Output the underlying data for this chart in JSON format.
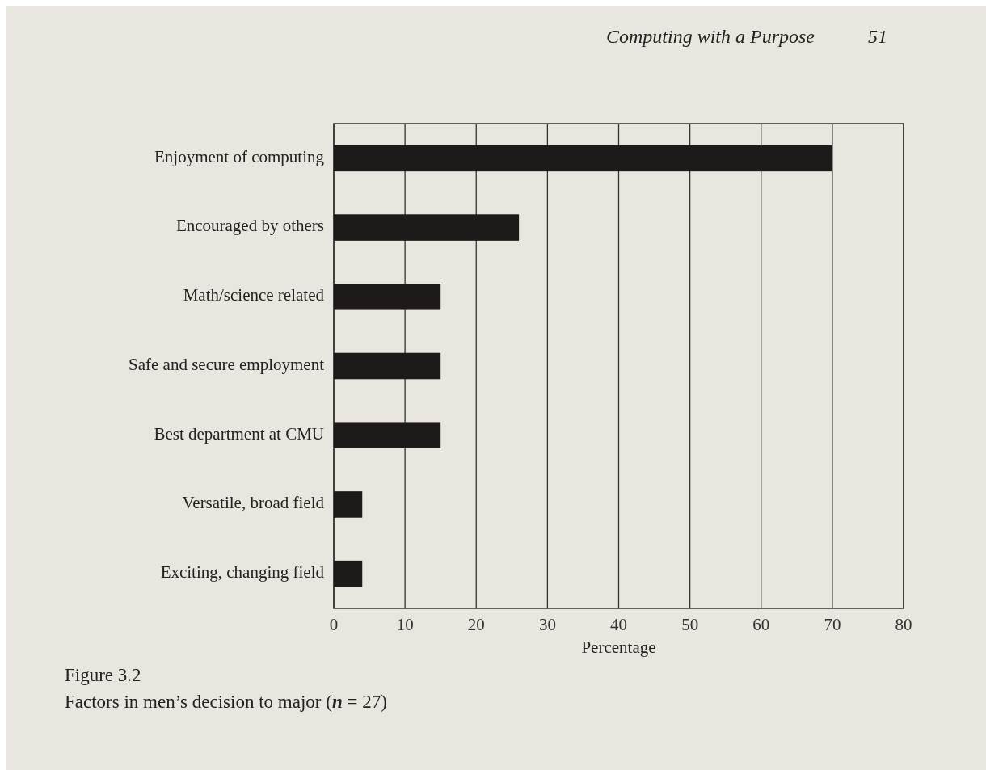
{
  "chart_data": {
    "type": "bar",
    "orientation": "horizontal",
    "title": "Figure 3.2",
    "subtitle": "Factors in men’s decision to major (n = 27)",
    "xlabel": "Percentage",
    "categories": [
      "Enjoyment of computing",
      "Encouraged by others",
      "Math/science related",
      "Safe and secure employment",
      "Best department at CMU",
      "Versatile, broad field",
      "Exciting, changing field"
    ],
    "values": [
      70,
      26,
      15,
      15,
      15,
      4,
      4
    ],
    "color": "#1e1a1a",
    "xlim": [
      0,
      80
    ],
    "xticks": [
      0,
      10,
      20,
      30,
      40,
      50,
      60,
      70,
      80
    ],
    "grid": "x",
    "annotations": [
      "Computing with a Purpose",
      "51"
    ]
  }
}
